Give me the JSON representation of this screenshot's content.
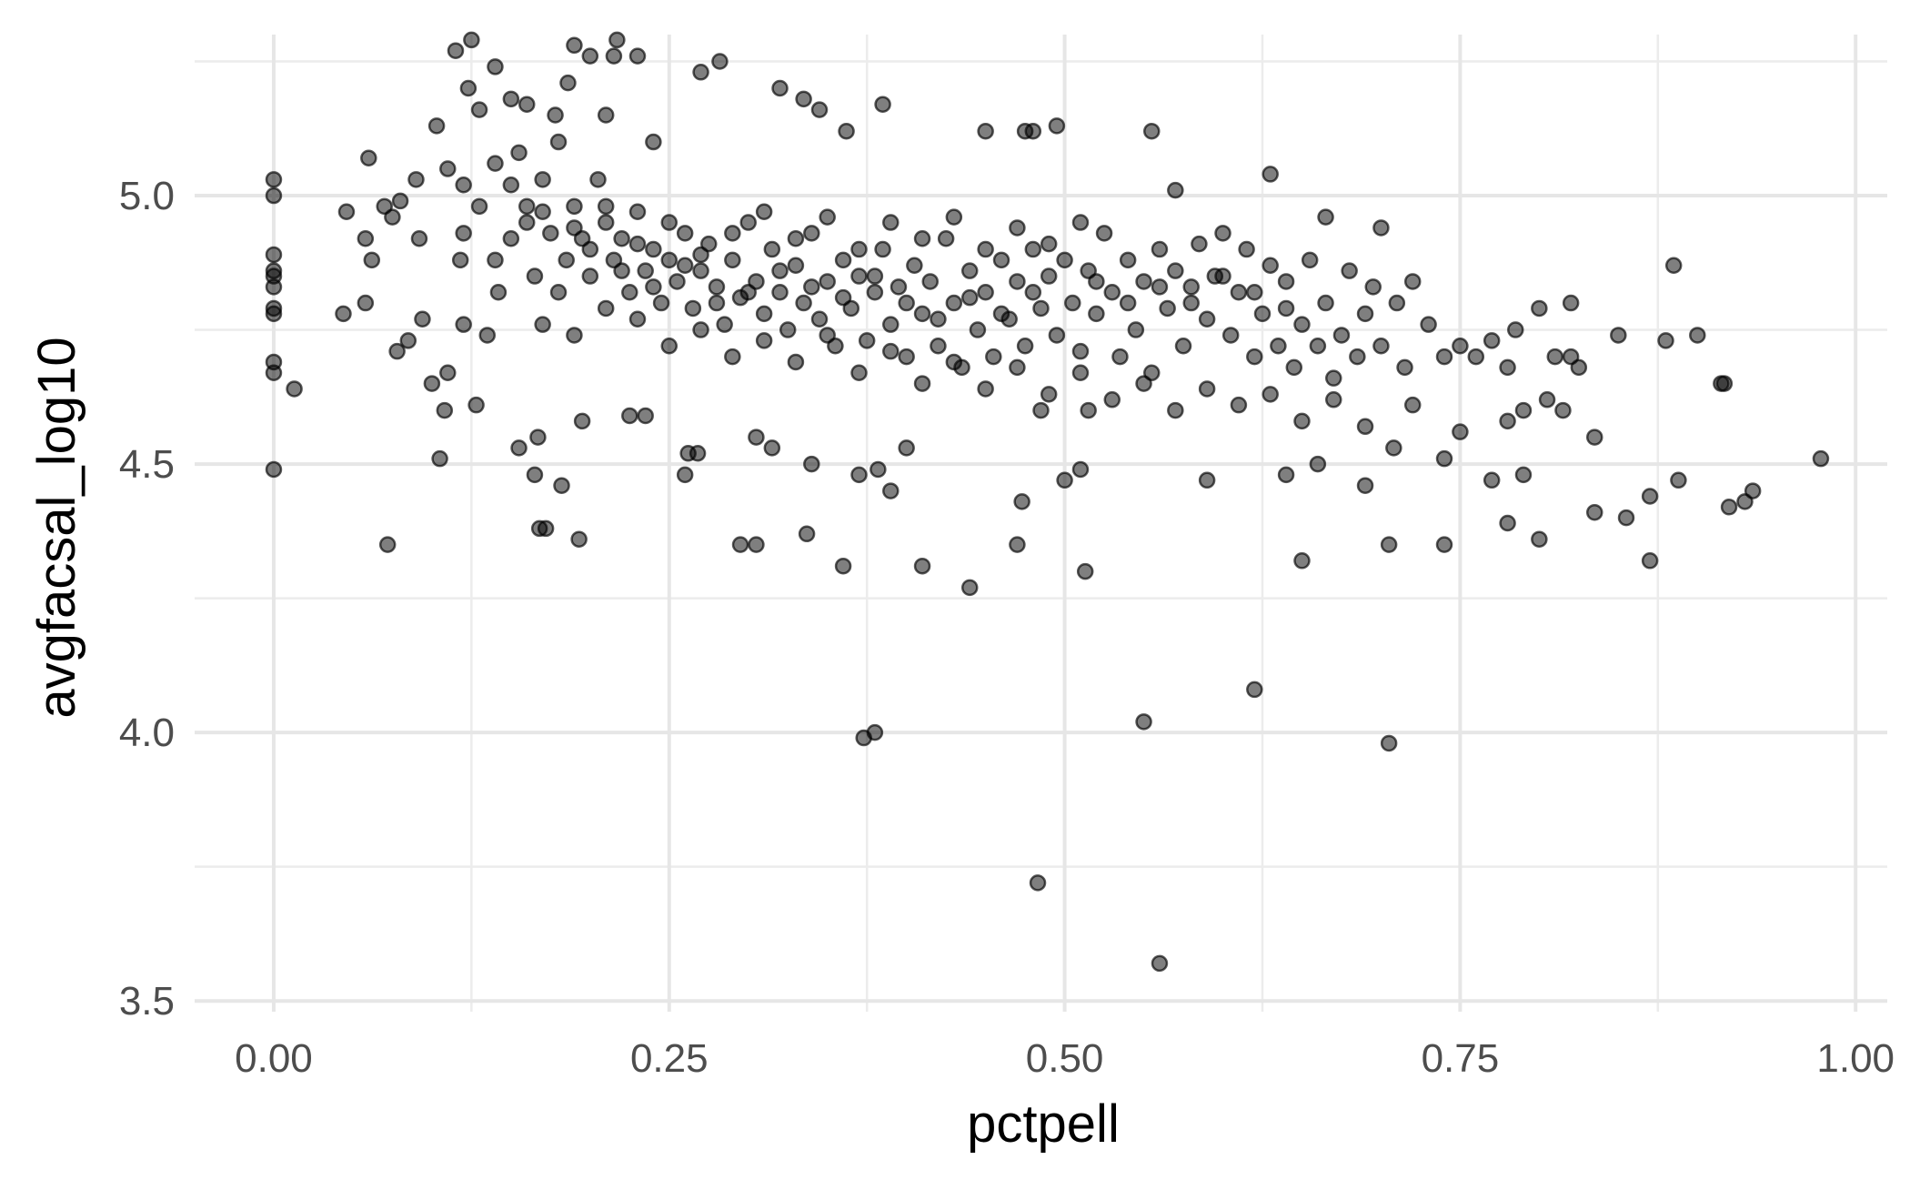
{
  "chart_data": {
    "type": "scatter",
    "xlabel": "pctpell",
    "ylabel": "avgfacsal_log10",
    "xlim": [
      -0.05,
      1.02
    ],
    "ylim": [
      3.48,
      5.3
    ],
    "x_ticks": [
      0.0,
      0.25,
      0.5,
      0.75,
      1.0
    ],
    "x_tick_labels": [
      "0.00",
      "0.25",
      "0.50",
      "0.75",
      "1.00"
    ],
    "x_minor_ticks": [
      0.125,
      0.375,
      0.625,
      0.875
    ],
    "y_ticks": [
      3.5,
      4.0,
      4.5,
      5.0
    ],
    "y_tick_labels": [
      "3.5",
      "4.0",
      "4.5",
      "5.0"
    ],
    "y_minor_ticks": [
      3.75,
      4.25,
      4.75,
      5.25
    ],
    "grid": true,
    "legend": "none",
    "point_color": "#000000",
    "point_alpha": 0.5,
    "points": [
      [
        0.0,
        5.03
      ],
      [
        0.0,
        5.0
      ],
      [
        0.0,
        4.89
      ],
      [
        0.0,
        4.86
      ],
      [
        0.0,
        4.85
      ],
      [
        0.0,
        4.83
      ],
      [
        0.0,
        4.79
      ],
      [
        0.0,
        4.78
      ],
      [
        0.0,
        4.69
      ],
      [
        0.0,
        4.67
      ],
      [
        0.0,
        4.49
      ],
      [
        0.013,
        4.64
      ],
      [
        0.044,
        4.78
      ],
      [
        0.046,
        4.97
      ],
      [
        0.058,
        4.92
      ],
      [
        0.058,
        4.8
      ],
      [
        0.06,
        5.07
      ],
      [
        0.062,
        4.88
      ],
      [
        0.07,
        4.98
      ],
      [
        0.072,
        4.35
      ],
      [
        0.075,
        4.96
      ],
      [
        0.078,
        4.71
      ],
      [
        0.08,
        4.99
      ],
      [
        0.085,
        4.73
      ],
      [
        0.09,
        5.03
      ],
      [
        0.092,
        4.92
      ],
      [
        0.094,
        4.77
      ],
      [
        0.1,
        4.65
      ],
      [
        0.103,
        5.13
      ],
      [
        0.105,
        4.51
      ],
      [
        0.108,
        4.6
      ],
      [
        0.11,
        4.67
      ],
      [
        0.115,
        5.27
      ],
      [
        0.118,
        4.88
      ],
      [
        0.12,
        4.76
      ],
      [
        0.123,
        5.2
      ],
      [
        0.125,
        5.29
      ],
      [
        0.128,
        4.61
      ],
      [
        0.13,
        5.16
      ],
      [
        0.135,
        4.74
      ],
      [
        0.14,
        5.24
      ],
      [
        0.142,
        4.82
      ],
      [
        0.15,
        5.18
      ],
      [
        0.155,
        4.53
      ],
      [
        0.16,
        5.17
      ],
      [
        0.165,
        4.48
      ],
      [
        0.167,
        4.55
      ],
      [
        0.168,
        4.38
      ],
      [
        0.172,
        4.38
      ],
      [
        0.178,
        5.15
      ],
      [
        0.182,
        4.46
      ],
      [
        0.186,
        5.21
      ],
      [
        0.19,
        5.28
      ],
      [
        0.193,
        4.36
      ],
      [
        0.195,
        4.58
      ],
      [
        0.2,
        5.26
      ],
      [
        0.21,
        5.15
      ],
      [
        0.215,
        5.26
      ],
      [
        0.217,
        5.29
      ],
      [
        0.225,
        4.59
      ],
      [
        0.23,
        5.26
      ],
      [
        0.235,
        4.59
      ],
      [
        0.24,
        5.1
      ],
      [
        0.26,
        4.48
      ],
      [
        0.262,
        4.52
      ],
      [
        0.268,
        4.52
      ],
      [
        0.27,
        5.23
      ],
      [
        0.282,
        5.25
      ],
      [
        0.295,
        4.35
      ],
      [
        0.305,
        4.35
      ],
      [
        0.305,
        4.55
      ],
      [
        0.315,
        4.53
      ],
      [
        0.32,
        5.2
      ],
      [
        0.335,
        5.18
      ],
      [
        0.337,
        4.37
      ],
      [
        0.34,
        4.5
      ],
      [
        0.345,
        5.16
      ],
      [
        0.36,
        4.31
      ],
      [
        0.362,
        5.12
      ],
      [
        0.37,
        4.48
      ],
      [
        0.373,
        3.99
      ],
      [
        0.38,
        4.0
      ],
      [
        0.382,
        4.49
      ],
      [
        0.385,
        5.17
      ],
      [
        0.39,
        4.45
      ],
      [
        0.4,
        4.53
      ],
      [
        0.41,
        4.31
      ],
      [
        0.44,
        4.27
      ],
      [
        0.45,
        5.12
      ],
      [
        0.47,
        4.35
      ],
      [
        0.473,
        4.43
      ],
      [
        0.475,
        5.12
      ],
      [
        0.48,
        5.12
      ],
      [
        0.483,
        3.72
      ],
      [
        0.485,
        4.6
      ],
      [
        0.495,
        5.13
      ],
      [
        0.5,
        4.47
      ],
      [
        0.51,
        4.49
      ],
      [
        0.513,
        4.3
      ],
      [
        0.515,
        4.6
      ],
      [
        0.55,
        4.02
      ],
      [
        0.555,
        5.12
      ],
      [
        0.56,
        3.57
      ],
      [
        0.57,
        5.01
      ],
      [
        0.59,
        4.47
      ],
      [
        0.62,
        4.08
      ],
      [
        0.63,
        5.04
      ],
      [
        0.64,
        4.48
      ],
      [
        0.65,
        4.32
      ],
      [
        0.66,
        4.5
      ],
      [
        0.665,
        4.96
      ],
      [
        0.69,
        4.46
      ],
      [
        0.7,
        4.94
      ],
      [
        0.705,
        4.35
      ],
      [
        0.705,
        3.98
      ],
      [
        0.708,
        4.53
      ],
      [
        0.74,
        4.35
      ],
      [
        0.74,
        4.51
      ],
      [
        0.77,
        4.47
      ],
      [
        0.78,
        4.39
      ],
      [
        0.79,
        4.48
      ],
      [
        0.8,
        4.36
      ],
      [
        0.82,
        4.8
      ],
      [
        0.835,
        4.41
      ],
      [
        0.835,
        4.55
      ],
      [
        0.85,
        4.74
      ],
      [
        0.855,
        4.4
      ],
      [
        0.87,
        4.44
      ],
      [
        0.87,
        4.32
      ],
      [
        0.88,
        4.73
      ],
      [
        0.885,
        4.87
      ],
      [
        0.888,
        4.47
      ],
      [
        0.9,
        4.74
      ],
      [
        0.915,
        4.65
      ],
      [
        0.917,
        4.65
      ],
      [
        0.92,
        4.42
      ],
      [
        0.93,
        4.43
      ],
      [
        0.935,
        4.45
      ],
      [
        0.978,
        4.51
      ],
      [
        0.11,
        5.05
      ],
      [
        0.12,
        5.02
      ],
      [
        0.13,
        4.98
      ],
      [
        0.14,
        5.06
      ],
      [
        0.15,
        4.92
      ],
      [
        0.155,
        5.08
      ],
      [
        0.16,
        4.98
      ],
      [
        0.165,
        4.85
      ],
      [
        0.17,
        5.03
      ],
      [
        0.175,
        4.93
      ],
      [
        0.18,
        5.1
      ],
      [
        0.185,
        4.88
      ],
      [
        0.19,
        4.98
      ],
      [
        0.195,
        4.92
      ],
      [
        0.2,
        4.85
      ],
      [
        0.205,
        5.03
      ],
      [
        0.21,
        4.95
      ],
      [
        0.215,
        4.88
      ],
      [
        0.22,
        4.92
      ],
      [
        0.225,
        4.82
      ],
      [
        0.23,
        4.97
      ],
      [
        0.235,
        4.86
      ],
      [
        0.24,
        4.9
      ],
      [
        0.245,
        4.8
      ],
      [
        0.25,
        4.88
      ],
      [
        0.255,
        4.84
      ],
      [
        0.26,
        4.93
      ],
      [
        0.265,
        4.79
      ],
      [
        0.27,
        4.86
      ],
      [
        0.275,
        4.91
      ],
      [
        0.28,
        4.83
      ],
      [
        0.285,
        4.76
      ],
      [
        0.29,
        4.88
      ],
      [
        0.295,
        4.81
      ],
      [
        0.3,
        4.95
      ],
      [
        0.305,
        4.84
      ],
      [
        0.31,
        4.78
      ],
      [
        0.315,
        4.9
      ],
      [
        0.32,
        4.82
      ],
      [
        0.325,
        4.75
      ],
      [
        0.33,
        4.87
      ],
      [
        0.335,
        4.8
      ],
      [
        0.34,
        4.93
      ],
      [
        0.345,
        4.77
      ],
      [
        0.35,
        4.84
      ],
      [
        0.355,
        4.72
      ],
      [
        0.36,
        4.88
      ],
      [
        0.365,
        4.79
      ],
      [
        0.37,
        4.85
      ],
      [
        0.375,
        4.73
      ],
      [
        0.38,
        4.82
      ],
      [
        0.385,
        4.9
      ],
      [
        0.39,
        4.76
      ],
      [
        0.395,
        4.83
      ],
      [
        0.4,
        4.7
      ],
      [
        0.405,
        4.87
      ],
      [
        0.41,
        4.78
      ],
      [
        0.415,
        4.84
      ],
      [
        0.42,
        4.72
      ],
      [
        0.425,
        4.92
      ],
      [
        0.43,
        4.8
      ],
      [
        0.435,
        4.68
      ],
      [
        0.44,
        4.86
      ],
      [
        0.445,
        4.75
      ],
      [
        0.45,
        4.82
      ],
      [
        0.455,
        4.7
      ],
      [
        0.46,
        4.88
      ],
      [
        0.465,
        4.77
      ],
      [
        0.47,
        4.84
      ],
      [
        0.475,
        4.72
      ],
      [
        0.48,
        4.9
      ],
      [
        0.485,
        4.79
      ],
      [
        0.49,
        4.85
      ],
      [
        0.495,
        4.74
      ],
      [
        0.5,
        4.88
      ],
      [
        0.505,
        4.8
      ],
      [
        0.51,
        4.71
      ],
      [
        0.515,
        4.86
      ],
      [
        0.52,
        4.78
      ],
      [
        0.525,
        4.93
      ],
      [
        0.53,
        4.82
      ],
      [
        0.535,
        4.7
      ],
      [
        0.54,
        4.88
      ],
      [
        0.545,
        4.75
      ],
      [
        0.55,
        4.84
      ],
      [
        0.555,
        4.67
      ],
      [
        0.56,
        4.9
      ],
      [
        0.565,
        4.79
      ],
      [
        0.57,
        4.86
      ],
      [
        0.575,
        4.72
      ],
      [
        0.58,
        4.83
      ],
      [
        0.585,
        4.91
      ],
      [
        0.59,
        4.77
      ],
      [
        0.595,
        4.85
      ],
      [
        0.6,
        4.93
      ],
      [
        0.605,
        4.74
      ],
      [
        0.61,
        4.82
      ],
      [
        0.615,
        4.9
      ],
      [
        0.62,
        4.7
      ],
      [
        0.625,
        4.78
      ],
      [
        0.63,
        4.87
      ],
      [
        0.635,
        4.72
      ],
      [
        0.64,
        4.84
      ],
      [
        0.645,
        4.68
      ],
      [
        0.65,
        4.76
      ],
      [
        0.655,
        4.88
      ],
      [
        0.66,
        4.72
      ],
      [
        0.665,
        4.8
      ],
      [
        0.67,
        4.66
      ],
      [
        0.675,
        4.74
      ],
      [
        0.68,
        4.86
      ],
      [
        0.685,
        4.7
      ],
      [
        0.69,
        4.78
      ],
      [
        0.695,
        4.83
      ],
      [
        0.7,
        4.72
      ],
      [
        0.71,
        4.8
      ],
      [
        0.715,
        4.68
      ],
      [
        0.72,
        4.84
      ],
      [
        0.73,
        4.76
      ],
      [
        0.74,
        4.7
      ],
      [
        0.75,
        4.72
      ],
      [
        0.76,
        4.7
      ],
      [
        0.77,
        4.73
      ],
      [
        0.78,
        4.68
      ],
      [
        0.785,
        4.75
      ],
      [
        0.79,
        4.6
      ],
      [
        0.8,
        4.79
      ],
      [
        0.805,
        4.62
      ],
      [
        0.81,
        4.7
      ],
      [
        0.815,
        4.6
      ],
      [
        0.82,
        4.7
      ],
      [
        0.825,
        4.68
      ],
      [
        0.12,
        4.93
      ],
      [
        0.14,
        4.88
      ],
      [
        0.16,
        4.95
      ],
      [
        0.18,
        4.82
      ],
      [
        0.2,
        4.9
      ],
      [
        0.22,
        4.86
      ],
      [
        0.24,
        4.83
      ],
      [
        0.26,
        4.87
      ],
      [
        0.28,
        4.8
      ],
      [
        0.3,
        4.82
      ],
      [
        0.32,
        4.86
      ],
      [
        0.34,
        4.83
      ],
      [
        0.36,
        4.81
      ],
      [
        0.38,
        4.85
      ],
      [
        0.4,
        4.8
      ],
      [
        0.42,
        4.77
      ],
      [
        0.44,
        4.81
      ],
      [
        0.46,
        4.78
      ],
      [
        0.48,
        4.82
      ],
      [
        0.52,
        4.84
      ],
      [
        0.54,
        4.8
      ],
      [
        0.56,
        4.83
      ],
      [
        0.58,
        4.8
      ],
      [
        0.6,
        4.85
      ],
      [
        0.62,
        4.82
      ],
      [
        0.64,
        4.79
      ],
      [
        0.15,
        5.02
      ],
      [
        0.17,
        4.97
      ],
      [
        0.19,
        4.94
      ],
      [
        0.21,
        4.98
      ],
      [
        0.23,
        4.91
      ],
      [
        0.25,
        4.95
      ],
      [
        0.27,
        4.89
      ],
      [
        0.29,
        4.93
      ],
      [
        0.31,
        4.97
      ],
      [
        0.33,
        4.92
      ],
      [
        0.35,
        4.96
      ],
      [
        0.37,
        4.9
      ],
      [
        0.39,
        4.95
      ],
      [
        0.41,
        4.92
      ],
      [
        0.43,
        4.96
      ],
      [
        0.45,
        4.9
      ],
      [
        0.47,
        4.94
      ],
      [
        0.49,
        4.91
      ],
      [
        0.51,
        4.95
      ],
      [
        0.17,
        4.76
      ],
      [
        0.19,
        4.74
      ],
      [
        0.21,
        4.79
      ],
      [
        0.23,
        4.77
      ],
      [
        0.25,
        4.72
      ],
      [
        0.27,
        4.75
      ],
      [
        0.29,
        4.7
      ],
      [
        0.31,
        4.73
      ],
      [
        0.33,
        4.69
      ],
      [
        0.35,
        4.74
      ],
      [
        0.37,
        4.67
      ],
      [
        0.39,
        4.71
      ],
      [
        0.41,
        4.65
      ],
      [
        0.43,
        4.69
      ],
      [
        0.45,
        4.64
      ],
      [
        0.47,
        4.68
      ],
      [
        0.49,
        4.63
      ],
      [
        0.51,
        4.67
      ],
      [
        0.53,
        4.62
      ],
      [
        0.55,
        4.65
      ],
      [
        0.57,
        4.6
      ],
      [
        0.59,
        4.64
      ],
      [
        0.61,
        4.61
      ],
      [
        0.63,
        4.63
      ],
      [
        0.65,
        4.58
      ],
      [
        0.67,
        4.62
      ],
      [
        0.69,
        4.57
      ],
      [
        0.72,
        4.61
      ],
      [
        0.75,
        4.56
      ],
      [
        0.78,
        4.58
      ]
    ]
  }
}
